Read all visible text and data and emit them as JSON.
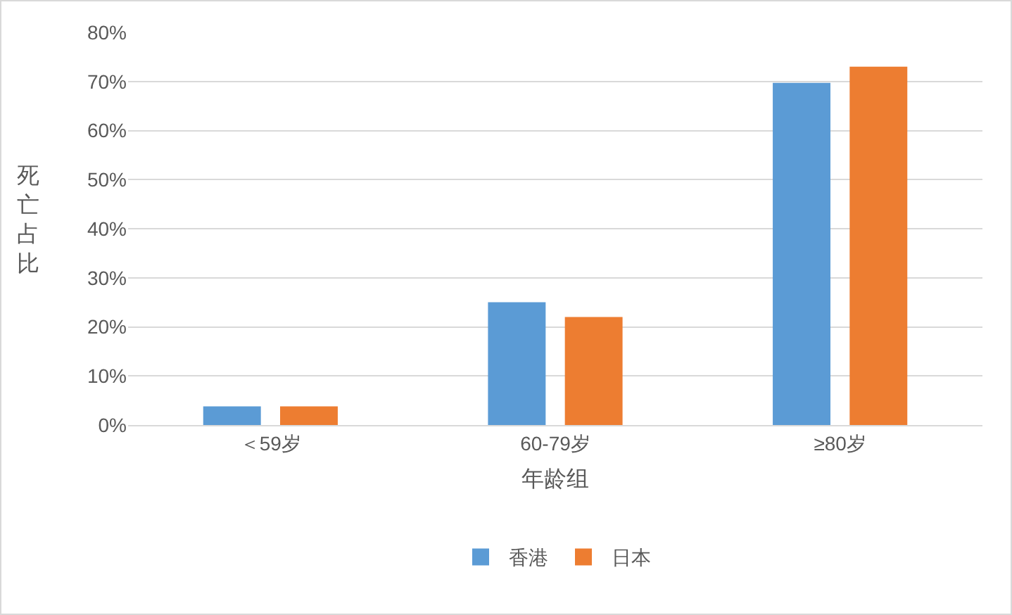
{
  "chart_data": {
    "type": "bar",
    "xlabel": "年龄组",
    "ylabel": "死亡占比",
    "categories": [
      "＜59岁",
      "60-79岁",
      "≥80岁"
    ],
    "series": [
      {
        "name": "香港",
        "color": "#5b9bd5",
        "values": [
          3.8,
          25,
          69.7
        ]
      },
      {
        "name": "日本",
        "color": "#ed7d31",
        "values": [
          3.8,
          22,
          73
        ]
      }
    ],
    "ylim": [
      0,
      80
    ],
    "yticks": [
      {
        "value": 0,
        "label": "0%"
      },
      {
        "value": 10,
        "label": "10%"
      },
      {
        "value": 20,
        "label": "20%"
      },
      {
        "value": 30,
        "label": "30%"
      },
      {
        "value": 40,
        "label": "40%"
      },
      {
        "value": 50,
        "label": "50%"
      },
      {
        "value": 60,
        "label": "60%"
      },
      {
        "value": 70,
        "label": "70%"
      },
      {
        "value": 80,
        "label": "80%"
      }
    ],
    "grid": "y",
    "legend": "bottom"
  }
}
